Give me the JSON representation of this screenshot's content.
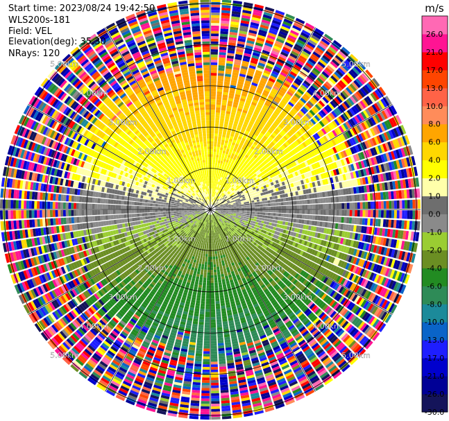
{
  "header": {
    "start_time": "Start time: 2023/08/24 19:42:50",
    "instrument": "WLS200s-181",
    "field": "Field: VEL",
    "elevation": "Elevation(deg): 35.30",
    "nrays": "NRays: 120"
  },
  "chart_data": {
    "type": "heatmap",
    "subtype": "ppi-polar",
    "field": "VEL",
    "units": "m/s",
    "nrays": 120,
    "elevation_deg": 35.3,
    "range_rings_km": [
      1.0,
      2.0,
      3.0,
      4.0,
      5.0
    ],
    "ring_label_text": [
      "1.00km",
      "2.00km",
      "3.00km",
      "4.00km",
      "5.00km"
    ],
    "max_range_km": 5.1,
    "spokes_deg": [
      0,
      30,
      60,
      90,
      120,
      150,
      180,
      210,
      240,
      270,
      300,
      330
    ],
    "wind_pattern": "toward radar from north (positive radial velocity north half, negative south half), clean signal within ~3 km, noisy beyond",
    "colorbar": {
      "unit_label": "m/s",
      "bounds": [
        -30.0,
        -26.0,
        -21.0,
        -17.0,
        -13.0,
        -10.0,
        -8.0,
        -6.0,
        -4.0,
        -2.0,
        -1.0,
        0.0,
        1.0,
        2.0,
        4.0,
        6.0,
        8.0,
        10.0,
        13.0,
        17.0,
        21.0,
        26.0
      ],
      "tick_labels": [
        "-30.0",
        "-26.0",
        "-21.0",
        "-17.0",
        "-13.0",
        "-10.0",
        "-8.0",
        "-6.0",
        "-4.0",
        "-2.0",
        "-1.0",
        "0.0",
        "1.0",
        "2.0",
        "4.0",
        "6.0",
        "8.0",
        "10.0",
        "13.0",
        "17.0",
        "21.0",
        "26.0"
      ],
      "colors": [
        "#14145a",
        "#000096",
        "#0000cd",
        "#1e1eff",
        "#0a64c8",
        "#1c8a9a",
        "#2e8b57",
        "#228b22",
        "#6b8e23",
        "#9acd32",
        "#8a8a8a",
        "#6e6e6e",
        "#ffffaa",
        "#ffff00",
        "#ffd700",
        "#ffa500",
        "#ff8c5a",
        "#ff6347",
        "#ff4500",
        "#ff0000",
        "#ff1493",
        "#ff69b4"
      ]
    }
  }
}
